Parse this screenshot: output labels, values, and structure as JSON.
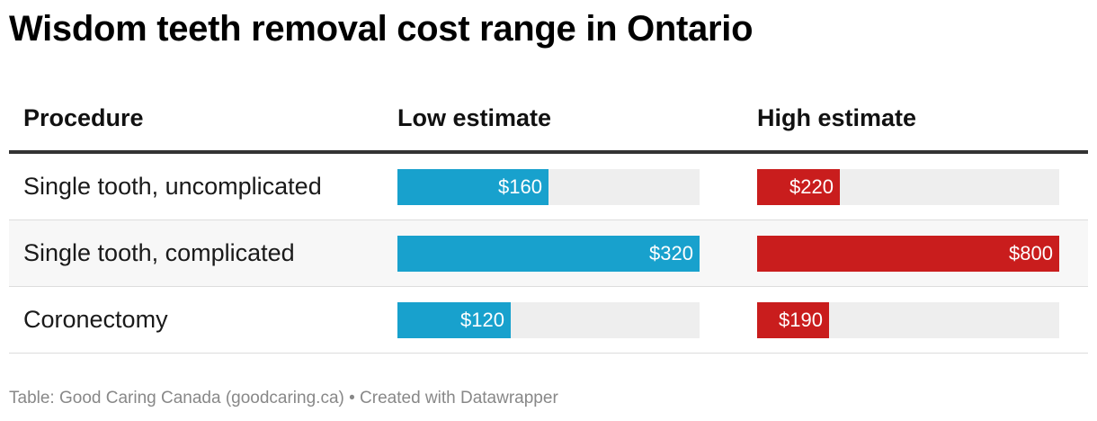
{
  "title": "Wisdom teeth removal cost range in Ontario",
  "colors": {
    "low": "#18a1cd",
    "high": "#c91d1d",
    "track": "#eeeeee"
  },
  "chart_data": {
    "type": "table",
    "columns": [
      "Procedure",
      "Low estimate",
      "High estimate"
    ],
    "rows": [
      {
        "procedure": "Single tooth, uncomplicated",
        "low": 160,
        "high": 220,
        "low_label": "$160",
        "high_label": "$220"
      },
      {
        "procedure": "Single tooth, complicated",
        "low": 320,
        "high": 800,
        "low_label": "$320",
        "high_label": "$800"
      },
      {
        "procedure": "Coronectomy",
        "low": 120,
        "high": 190,
        "low_label": "$120",
        "high_label": "$190"
      }
    ],
    "scales": {
      "low_max": 320,
      "high_max": 800
    }
  },
  "footer": "Table: Good Caring Canada (goodcaring.ca) • Created with Datawrapper"
}
